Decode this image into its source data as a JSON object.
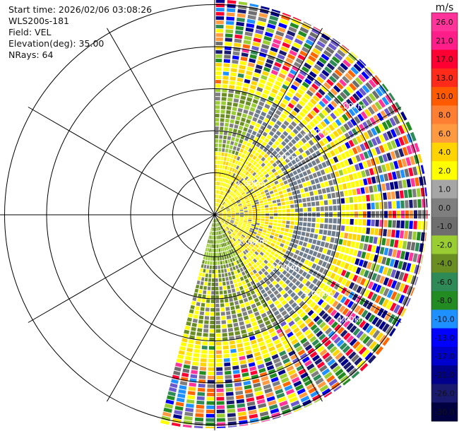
{
  "info": {
    "start_time": "Start time: 2026/02/06 03:08:26",
    "station": "WLS200s-181",
    "field": "Field: VEL",
    "elevation": "Elevation(deg): 35.00",
    "nrays": "NRays: 64"
  },
  "chart_data": {
    "type": "ppi-polar",
    "field": "VEL",
    "unit": "m/s",
    "elevation_deg": 35.0,
    "nrays": 64,
    "sector_deg": [
      -25,
      120
    ],
    "range_ring_labels": [
      "1.00km",
      "2.00km",
      "3.00km",
      "4.00km"
    ],
    "colorbar": {
      "label": "m/s",
      "ticks": [
        "26.0",
        "21.0",
        "17.0",
        "13.0",
        "10.0",
        "8.0",
        "6.0",
        "4.0",
        "2.0",
        "1.0",
        "0.0",
        "-1.0",
        "-2.0",
        "-4.0",
        "-6.0",
        "-8.0",
        "-10.0",
        "-13.0",
        "-17.0",
        "-21.0",
        "-26.0",
        "-30.0"
      ],
      "colors": [
        "#ff3399",
        "#ff1d8a",
        "#ff0033",
        "#ff2a1a",
        "#ff5a00",
        "#ff7f32",
        "#ff9a40",
        "#ffd400",
        "#ffff00",
        "#a6a6a6",
        "#7f7f7f",
        "#6e6e6e",
        "#9acd32",
        "#6b8e23",
        "#2e8b57",
        "#228b22",
        "#1e90ff",
        "#0000ff",
        "#0000cd",
        "#00008b",
        "#191970",
        "#000040"
      ]
    }
  }
}
